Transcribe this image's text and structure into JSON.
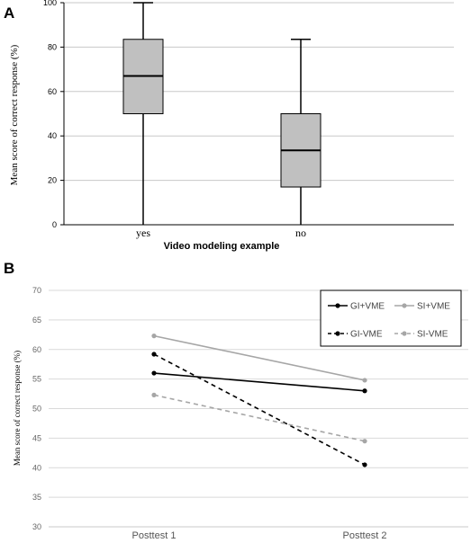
{
  "chart_data": [
    {
      "panel": "A",
      "type": "boxplot",
      "xlabel": "Video modeling example",
      "ylabel": "Mean score of correct response (%)",
      "ylim": [
        0,
        100
      ],
      "yticks": [
        0,
        20,
        40,
        60,
        80,
        100
      ],
      "categories": [
        "yes",
        "no"
      ],
      "boxes": [
        {
          "category": "yes",
          "min": 0,
          "q1": 50,
          "median": 67,
          "q3": 83.5,
          "max": 100
        },
        {
          "category": "no",
          "min": 0,
          "q1": 17,
          "median": 33.5,
          "q3": 50,
          "max": 83.5
        }
      ],
      "grid": true,
      "colors": {
        "box_fill": "#c0c0c0",
        "grid": "#c8c8c8",
        "line": "#000000"
      }
    },
    {
      "panel": "B",
      "type": "line",
      "ylabel": "Mean score of correct response (%)",
      "ylim": [
        30,
        70
      ],
      "yticks": [
        30,
        35,
        40,
        45,
        50,
        55,
        60,
        65,
        70
      ],
      "categories": [
        "Posttest 1",
        "Posttest 2"
      ],
      "series": [
        {
          "name": "GI+VME",
          "values": [
            56,
            53
          ],
          "color": "#000000",
          "dashed": false
        },
        {
          "name": "SI+VME",
          "values": [
            62.3,
            54.8
          ],
          "color": "#a6a6a6",
          "dashed": false
        },
        {
          "name": "GI-VME",
          "values": [
            59.2,
            40.5
          ],
          "color": "#000000",
          "dashed": true
        },
        {
          "name": "SI-VME",
          "values": [
            52.3,
            44.5
          ],
          "color": "#a6a6a6",
          "dashed": true
        }
      ],
      "legend_position": "top-right",
      "grid": true
    }
  ]
}
